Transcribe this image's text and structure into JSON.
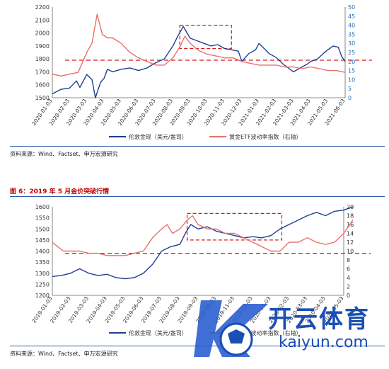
{
  "charts": [
    {
      "type": "line",
      "x_labels": [
        "2020-01-03",
        "2020-02-03",
        "2020-03-03",
        "2020-04-03",
        "2020-05-03",
        "2020-06-03",
        "2020-07-03",
        "2020-08-03",
        "2020-09-03",
        "2020-10-03",
        "2020-11-03",
        "2020-12-03",
        "2021-01-03",
        "2021-02-03",
        "2021-03-03",
        "2021-04-03",
        "2021-05-03",
        "2021-06-03"
      ],
      "left_axis": {
        "min": 1500,
        "max": 2200,
        "ticks": [
          1500,
          1600,
          1700,
          1800,
          1900,
          2000,
          2100,
          2200
        ]
      },
      "right_axis": {
        "min": 0,
        "max": 50,
        "ticks": [
          0,
          5,
          10,
          15,
          20,
          25,
          30,
          35,
          40,
          45,
          50
        ]
      },
      "series": [
        {
          "name": "伦敦金现（美元/盎司）",
          "axis": "left",
          "color": "#1f3f8f",
          "points": [
            [
              0,
              1530
            ],
            [
              0.5,
              1565
            ],
            [
              1,
              1575
            ],
            [
              1.4,
              1630
            ],
            [
              1.6,
              1580
            ],
            [
              2,
              1680
            ],
            [
              2.3,
              1640
            ],
            [
              2.5,
              1500
            ],
            [
              2.8,
              1620
            ],
            [
              3,
              1650
            ],
            [
              3.2,
              1720
            ],
            [
              3.5,
              1700
            ],
            [
              4,
              1720
            ],
            [
              4.5,
              1730
            ],
            [
              5,
              1710
            ],
            [
              5.5,
              1730
            ],
            [
              6,
              1770
            ],
            [
              6.5,
              1800
            ],
            [
              7,
              1900
            ],
            [
              7.3,
              1980
            ],
            [
              7.6,
              2050
            ],
            [
              8,
              1960
            ],
            [
              8.4,
              1940
            ],
            [
              8.8,
              1920
            ],
            [
              9.2,
              1900
            ],
            [
              9.6,
              1910
            ],
            [
              10,
              1880
            ],
            [
              10.4,
              1870
            ],
            [
              10.8,
              1860
            ],
            [
              11,
              1780
            ],
            [
              11.4,
              1840
            ],
            [
              11.8,
              1870
            ],
            [
              12,
              1920
            ],
            [
              12.3,
              1880
            ],
            [
              12.6,
              1840
            ],
            [
              13,
              1810
            ],
            [
              13.4,
              1760
            ],
            [
              13.8,
              1720
            ],
            [
              14,
              1700
            ],
            [
              14.4,
              1730
            ],
            [
              14.8,
              1760
            ],
            [
              15,
              1780
            ],
            [
              15.4,
              1800
            ],
            [
              15.8,
              1850
            ],
            [
              16,
              1870
            ],
            [
              16.3,
              1900
            ],
            [
              16.6,
              1890
            ],
            [
              16.8,
              1820
            ],
            [
              17,
              1780
            ]
          ]
        },
        {
          "name": "黄金ETF波动率指数（右轴）",
          "axis": "right",
          "color": "#e8706c",
          "points": [
            [
              0,
              13
            ],
            [
              0.5,
              12
            ],
            [
              1,
              13
            ],
            [
              1.5,
              14
            ],
            [
              2,
              25
            ],
            [
              2.3,
              30
            ],
            [
              2.6,
              46
            ],
            [
              2.9,
              35
            ],
            [
              3.2,
              33
            ],
            [
              3.5,
              33
            ],
            [
              4,
              30
            ],
            [
              4.5,
              25
            ],
            [
              5,
              22
            ],
            [
              5.5,
              20
            ],
            [
              6,
              18
            ],
            [
              6.5,
              18
            ],
            [
              7,
              22
            ],
            [
              7.4,
              28
            ],
            [
              7.7,
              34
            ],
            [
              8,
              30
            ],
            [
              8.5,
              26
            ],
            [
              9,
              24
            ],
            [
              9.5,
              23
            ],
            [
              10,
              22
            ],
            [
              10.5,
              22
            ],
            [
              11,
              20
            ],
            [
              11.5,
              19
            ],
            [
              12,
              18
            ],
            [
              12.5,
              18
            ],
            [
              13,
              18
            ],
            [
              13.5,
              17
            ],
            [
              14,
              17
            ],
            [
              14.5,
              16
            ],
            [
              15,
              17
            ],
            [
              15.5,
              16
            ],
            [
              16,
              15
            ],
            [
              16.5,
              15
            ],
            [
              17,
              14
            ]
          ]
        }
      ],
      "reference_line_left": 1790,
      "highlight_box": {
        "x0": 7.4,
        "x1": 10.4,
        "y0_left": 1880,
        "y1_left": 2060
      },
      "legend": [
        "伦敦金现（美元/盎司）",
        "黄金ETF波动率指数（右轴）"
      ]
    },
    {
      "type": "line",
      "x_labels": [
        "2019-01-03",
        "2019-02-03",
        "2019-03-03",
        "2019-04-03",
        "2019-05-03",
        "2019-06-03",
        "2019-07-03",
        "2019-08-03",
        "2019-09-03",
        "2019-10-03",
        "2019-11-03",
        "2019-12-03",
        "2020-01-03",
        "2020-02-03",
        "2020-03-03",
        "2020-04-03",
        "2020-05-03"
      ],
      "left_axis": {
        "min": 1200,
        "max": 1600,
        "ticks": [
          1200,
          1250,
          1300,
          1350,
          1400,
          1450,
          1500,
          1550,
          1600
        ]
      },
      "right_axis": {
        "min": 0,
        "max": 20,
        "ticks": [
          0,
          2,
          4,
          6,
          8,
          10,
          12,
          14,
          16,
          18,
          20
        ]
      },
      "series": [
        {
          "name": "伦敦金现（美元/盎司）",
          "axis": "left",
          "color": "#1f3f8f",
          "points": [
            [
              0,
              1285
            ],
            [
              0.5,
              1290
            ],
            [
              1,
              1300
            ],
            [
              1.5,
              1320
            ],
            [
              2,
              1300
            ],
            [
              2.5,
              1290
            ],
            [
              3,
              1295
            ],
            [
              3.5,
              1280
            ],
            [
              4,
              1275
            ],
            [
              4.5,
              1280
            ],
            [
              5,
              1300
            ],
            [
              5.5,
              1340
            ],
            [
              6,
              1400
            ],
            [
              6.5,
              1420
            ],
            [
              7,
              1430
            ],
            [
              7.3,
              1480
            ],
            [
              7.6,
              1520
            ],
            [
              8,
              1500
            ],
            [
              8.5,
              1510
            ],
            [
              9,
              1490
            ],
            [
              9.5,
              1480
            ],
            [
              10,
              1470
            ],
            [
              10.5,
              1460
            ],
            [
              11,
              1465
            ],
            [
              11.5,
              1460
            ],
            [
              12,
              1470
            ],
            [
              12.5,
              1500
            ],
            [
              13,
              1520
            ],
            [
              13.5,
              1540
            ],
            [
              14,
              1560
            ],
            [
              14.5,
              1575
            ],
            [
              15,
              1560
            ],
            [
              15.5,
              1580
            ],
            [
              16,
              1585
            ],
            [
              16.5,
              1600
            ]
          ]
        },
        {
          "name": "黄金ETF波动率指数（右轴）",
          "axis": "right",
          "color": "#e8706c",
          "points": [
            [
              0,
              12
            ],
            [
              0.3,
              11
            ],
            [
              0.6,
              10
            ],
            [
              1,
              10
            ],
            [
              1.5,
              10
            ],
            [
              2,
              9.5
            ],
            [
              2.5,
              9.5
            ],
            [
              3,
              9
            ],
            [
              3.5,
              9
            ],
            [
              4,
              9
            ],
            [
              4.5,
              9.5
            ],
            [
              5,
              10
            ],
            [
              5.5,
              13
            ],
            [
              6,
              15
            ],
            [
              6.3,
              16
            ],
            [
              6.6,
              14
            ],
            [
              7,
              15
            ],
            [
              7.4,
              17
            ],
            [
              7.7,
              18
            ],
            [
              8,
              16
            ],
            [
              8.5,
              15
            ],
            [
              9,
              15
            ],
            [
              9.5,
              14
            ],
            [
              10,
              14
            ],
            [
              10.5,
              13
            ],
            [
              11,
              12
            ],
            [
              11.5,
              11
            ],
            [
              12,
              10
            ],
            [
              12.5,
              10
            ],
            [
              13,
              12
            ],
            [
              13.5,
              12
            ],
            [
              14,
              13
            ],
            [
              14.5,
              12
            ],
            [
              15,
              11.5
            ],
            [
              15.5,
              12
            ],
            [
              16,
              14
            ],
            [
              16.5,
              17
            ]
          ]
        }
      ],
      "reference_line_right": 9.5,
      "highlight_box": {
        "x0": 7.4,
        "x1": 12.6,
        "y0_left": 1450,
        "y1_left": 1570
      },
      "legend": [
        "伦敦金现（美元/盎司）",
        "黄金ETF波动率指数（右轴）"
      ]
    }
  ],
  "text": {
    "source1": "资料来源：Wind、Factset、申万宏源研究",
    "fig_title": "图 6：2019 年 5 月金价突破行情",
    "source2": "资料来源：Wind、Factset、申万宏源研究",
    "wm_cn": "开云体育",
    "wm_en": "kaiyun.com"
  }
}
